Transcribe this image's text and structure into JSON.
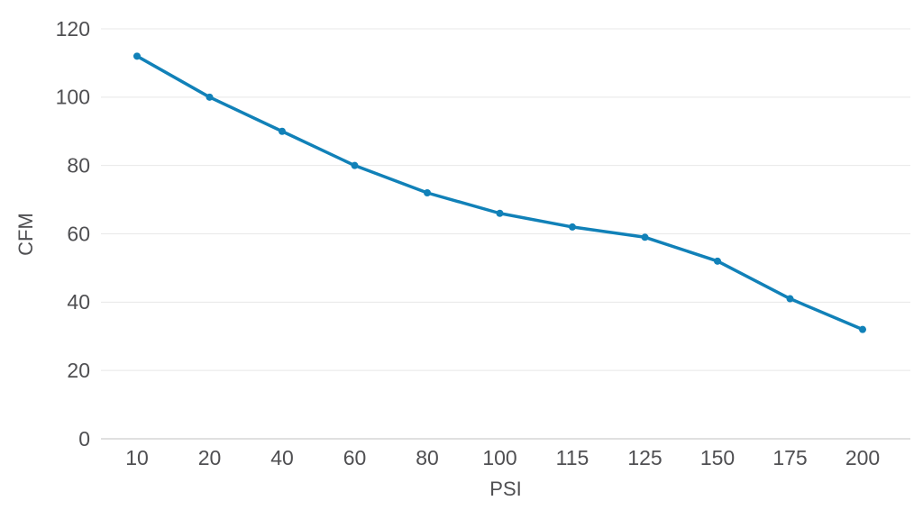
{
  "chart": {
    "title": "",
    "xlabel": "PSI",
    "ylabel": "CFM"
  },
  "chart_data": {
    "type": "line",
    "categories": [
      "10",
      "20",
      "40",
      "60",
      "80",
      "100",
      "115",
      "125",
      "150",
      "175",
      "200"
    ],
    "values": [
      112,
      100,
      90,
      80,
      72,
      66,
      62,
      59,
      52,
      41,
      32
    ],
    "series_name": "CFM",
    "title": "",
    "xlabel": "PSI",
    "ylabel": "CFM",
    "ylim": [
      0,
      120
    ],
    "yticks": [
      0,
      20,
      40,
      60,
      80,
      100,
      120
    ],
    "x_axis_type": "category-even-spacing",
    "grid": "horizontal-only",
    "legend": "none",
    "line_color": "#1181b8",
    "marker": "circle",
    "grid_color": "#e8e8e8",
    "axis_line_color": "#d6d6d6",
    "text_color": "#4f4f52"
  }
}
